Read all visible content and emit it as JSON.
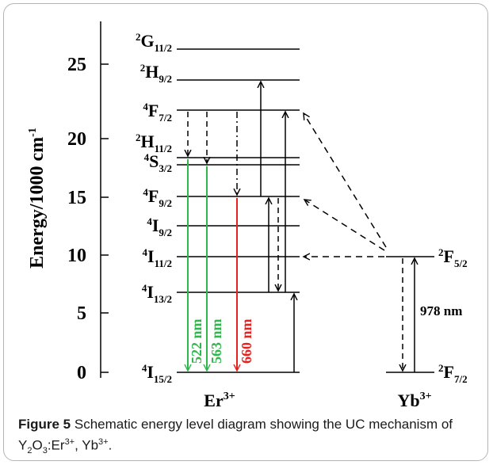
{
  "figure": {
    "y_axis_label": "Energy/1000 cm",
    "y_axis_label_sup": "-1",
    "y_ticks": [
      "0",
      "5",
      "10",
      "15",
      "20",
      "25"
    ],
    "er_ion": "Er",
    "er_ion_sup": "3+",
    "yb_ion": "Yb",
    "yb_ion_sup": "3+",
    "er_levels": [
      {
        "base": "G",
        "left": "2",
        "sub": "11/2"
      },
      {
        "base": "H",
        "left": "2",
        "sub": "9/2"
      },
      {
        "base": "F",
        "left": "4",
        "sub": "7/2"
      },
      {
        "base": "H",
        "left": "2",
        "sub": "11/2"
      },
      {
        "base": "S",
        "left": "4",
        "sub": "3/2"
      },
      {
        "base": "F",
        "left": "4",
        "sub": "9/2"
      },
      {
        "base": "I",
        "left": "4",
        "sub": "9/2"
      },
      {
        "base": "I",
        "left": "4",
        "sub": "11/2"
      },
      {
        "base": "I",
        "left": "4",
        "sub": "13/2"
      },
      {
        "base": "I",
        "left": "4",
        "sub": "15/2"
      }
    ],
    "yb_levels": [
      {
        "base": "F",
        "left": "2",
        "sub": "5/2"
      },
      {
        "base": "F",
        "left": "2",
        "sub": "7/2"
      }
    ],
    "emissions": [
      {
        "label": "522 nm",
        "color": "#2eb84a"
      },
      {
        "label": "563 nm",
        "color": "#2eb84a"
      },
      {
        "label": "660 nm",
        "color": "#e8201e"
      }
    ],
    "excitation_label": "978 nm"
  },
  "caption": {
    "figure_label": "Figure 5",
    "text_before": "Schematic energy level diagram showing the UC mechanism of Y",
    "formula_sub1": "2",
    "formula_mid": "O",
    "formula_sub2": "3",
    "formula_colon": ":Er",
    "formula_sup1": "3+",
    "formula_comma": ", Yb",
    "formula_sup2": "3+",
    "text_end": "."
  }
}
